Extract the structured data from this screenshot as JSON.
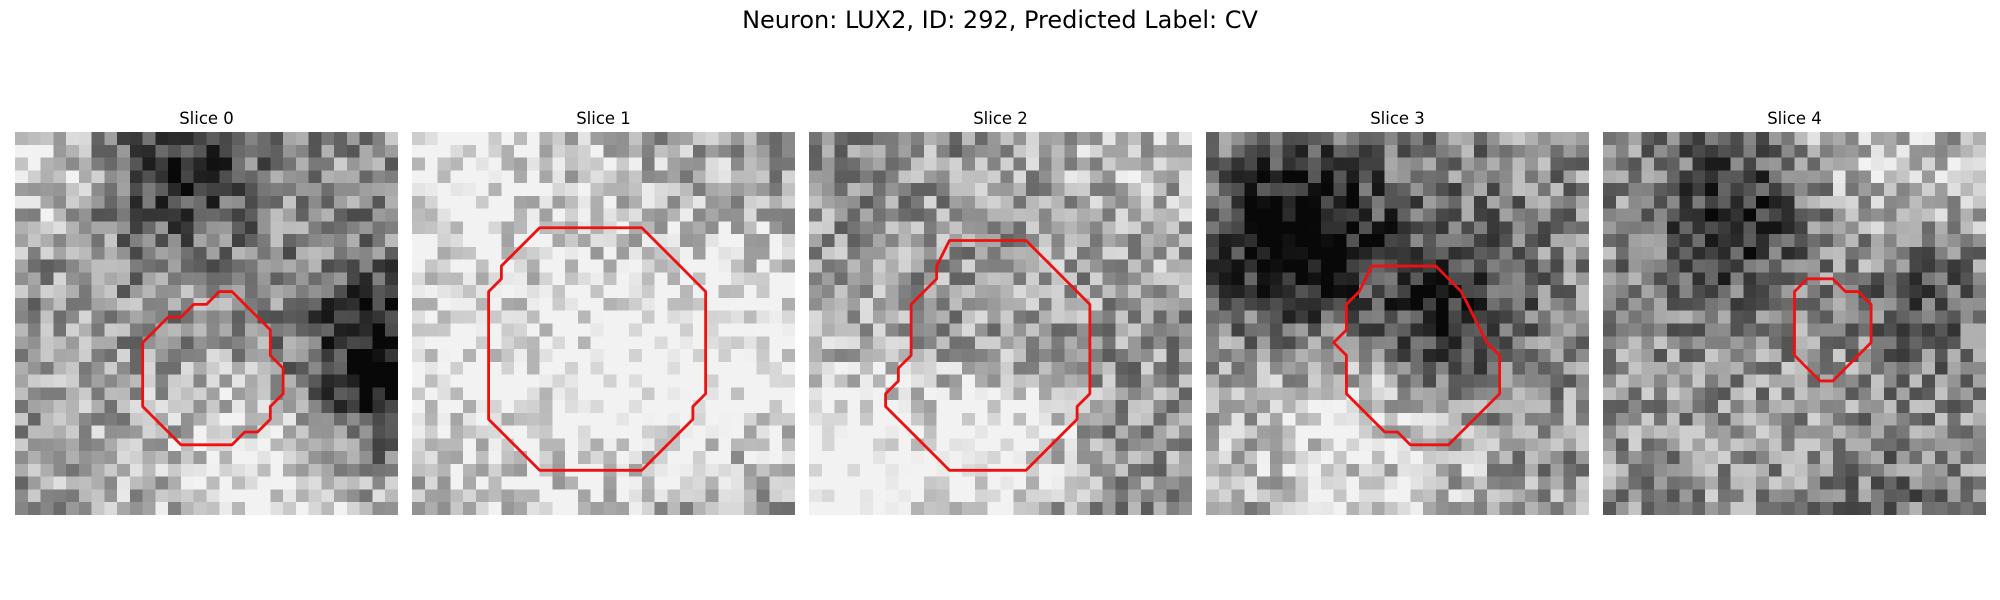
{
  "title": "Neuron: LUX2, ID: 292, Predicted Label: CV",
  "colors": {
    "contour": "#ee1111",
    "background": "#ffffff"
  },
  "panels": [
    {
      "title": "Slice 0",
      "seed": 11,
      "contour": [
        [
          16,
          12.5
        ],
        [
          17,
          12.5
        ],
        [
          18,
          13.5
        ],
        [
          19,
          14.5
        ],
        [
          20,
          15.5
        ],
        [
          20,
          17.5
        ],
        [
          21,
          18.5
        ],
        [
          21,
          20.5
        ],
        [
          20,
          21.5
        ],
        [
          20,
          22.5
        ],
        [
          19,
          23.5
        ],
        [
          18,
          23.5
        ],
        [
          17,
          24.5
        ],
        [
          13,
          24.5
        ],
        [
          12,
          23.5
        ],
        [
          11,
          22.5
        ],
        [
          10,
          21.5
        ],
        [
          10,
          16.5
        ],
        [
          11,
          15.5
        ],
        [
          12,
          14.5
        ],
        [
          13,
          14.5
        ],
        [
          14,
          13.5
        ],
        [
          15,
          13.5
        ]
      ]
    },
    {
      "title": "Slice 1",
      "seed": 23,
      "contour": [
        [
          10,
          7.5
        ],
        [
          18,
          7.5
        ],
        [
          19,
          8.5
        ],
        [
          20,
          9.5
        ],
        [
          21,
          10.5
        ],
        [
          22,
          11.5
        ],
        [
          23,
          12.5
        ],
        [
          23,
          20.5
        ],
        [
          22,
          21.5
        ],
        [
          22,
          22.5
        ],
        [
          21,
          23.5
        ],
        [
          20,
          24.5
        ],
        [
          19,
          25.5
        ],
        [
          18,
          26.5
        ],
        [
          10,
          26.5
        ],
        [
          9,
          25.5
        ],
        [
          8,
          24.5
        ],
        [
          7,
          23.5
        ],
        [
          6,
          22.5
        ],
        [
          6,
          12.5
        ],
        [
          7,
          11.5
        ],
        [
          7,
          10.5
        ],
        [
          8,
          9.5
        ],
        [
          9,
          8.5
        ]
      ]
    },
    {
      "title": "Slice 2",
      "seed": 37,
      "contour": [
        [
          11,
          8.5
        ],
        [
          17,
          8.5
        ],
        [
          18,
          9.5
        ],
        [
          19,
          10.5
        ],
        [
          20,
          11.5
        ],
        [
          21,
          12.5
        ],
        [
          22,
          13.5
        ],
        [
          22,
          20.5
        ],
        [
          21,
          21.5
        ],
        [
          21,
          22.5
        ],
        [
          20,
          23.5
        ],
        [
          19,
          24.5
        ],
        [
          18,
          25.5
        ],
        [
          17,
          26.5
        ],
        [
          11,
          26.5
        ],
        [
          10,
          25.5
        ],
        [
          9,
          24.5
        ],
        [
          8,
          23.5
        ],
        [
          7,
          22.5
        ],
        [
          6,
          21.5
        ],
        [
          6,
          20.5
        ],
        [
          7,
          19.5
        ],
        [
          7,
          18.5
        ],
        [
          8,
          17.5
        ],
        [
          8,
          13.5
        ],
        [
          9,
          12.5
        ],
        [
          10,
          11.5
        ],
        [
          10,
          10.5
        ]
      ]
    },
    {
      "title": "Slice 3",
      "seed": 51,
      "contour": [
        [
          13,
          10.5
        ],
        [
          18,
          10.5
        ],
        [
          19,
          11.5
        ],
        [
          20,
          12.5
        ],
        [
          21,
          14.5
        ],
        [
          22,
          16.5
        ],
        [
          23,
          17.5
        ],
        [
          23,
          20.5
        ],
        [
          22,
          21.5
        ],
        [
          21,
          22.5
        ],
        [
          20,
          23.5
        ],
        [
          19,
          24.5
        ],
        [
          16,
          24.5
        ],
        [
          15,
          23.5
        ],
        [
          14,
          23.5
        ],
        [
          13,
          22.5
        ],
        [
          12,
          21.5
        ],
        [
          11,
          20.5
        ],
        [
          11,
          17.5
        ],
        [
          10,
          16.5
        ],
        [
          11,
          15.5
        ],
        [
          11,
          13.5
        ],
        [
          12,
          12.5
        ]
      ]
    },
    {
      "title": "Slice 4",
      "seed": 67,
      "contour": [
        [
          16,
          11.5
        ],
        [
          18,
          11.5
        ],
        [
          19,
          12.5
        ],
        [
          20,
          12.5
        ],
        [
          21,
          13.5
        ],
        [
          21,
          16.5
        ],
        [
          20,
          17.5
        ],
        [
          19,
          18.5
        ],
        [
          18,
          19.5
        ],
        [
          17,
          19.5
        ],
        [
          16,
          18.5
        ],
        [
          15,
          17.5
        ],
        [
          15,
          12.5
        ]
      ]
    }
  ]
}
